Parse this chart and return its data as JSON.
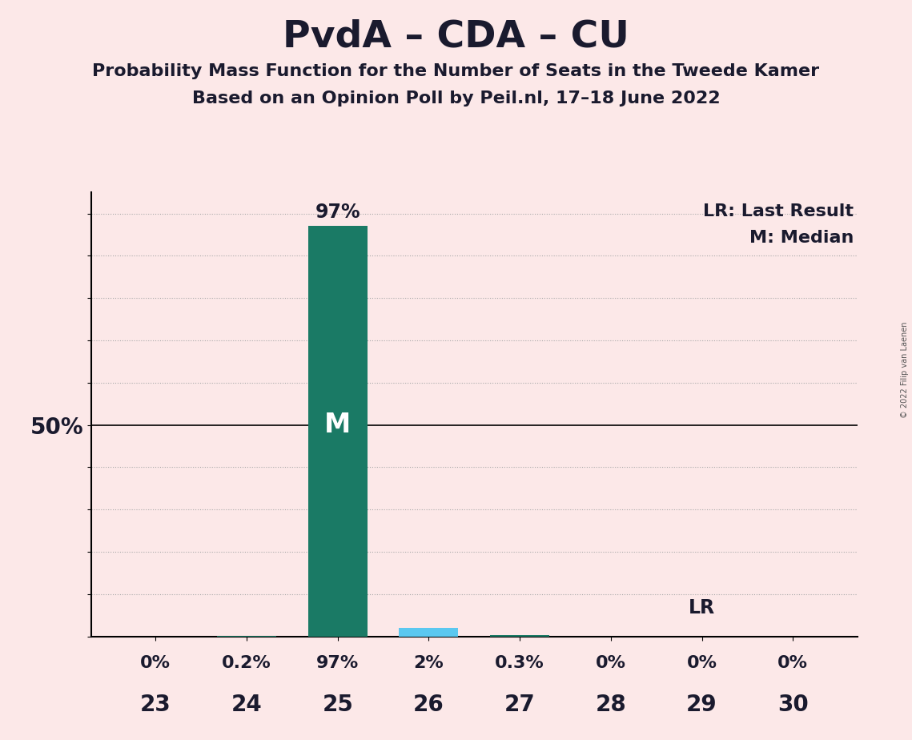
{
  "title": "PvdA – CDA – CU",
  "subtitle1": "Probability Mass Function for the Number of Seats in the Tweede Kamer",
  "subtitle2": "Based on an Opinion Poll by Peil.nl, 17–18 June 2022",
  "copyright": "© 2022 Filip van Laenen",
  "categories": [
    23,
    24,
    25,
    26,
    27,
    28,
    29,
    30
  ],
  "values": [
    0.0,
    0.2,
    97.0,
    2.0,
    0.3,
    0.0,
    0.0,
    0.0
  ],
  "value_labels": [
    "0%",
    "0.2%",
    "97%",
    "2%",
    "0.3%",
    "0%",
    "0%",
    "0%"
  ],
  "bar_color_main": "#1a7a65",
  "bar_color_lr": "#5bc8f0",
  "median_bar_index": 2,
  "lr_bar_index": 6,
  "background_color": "#fce8e8",
  "median_label": "M",
  "lr_label": "LR",
  "legend_lr": "LR: Last Result",
  "legend_m": "M: Median",
  "ylim": [
    0,
    105
  ],
  "yticks": [
    0,
    10,
    20,
    30,
    40,
    50,
    60,
    70,
    80,
    90,
    100
  ],
  "ytick_labels_show": [
    50
  ],
  "grid_color": "#aaaaaa",
  "title_fontsize": 34,
  "subtitle_fontsize": 16,
  "label_fontsize": 16,
  "tick_fontsize": 20
}
